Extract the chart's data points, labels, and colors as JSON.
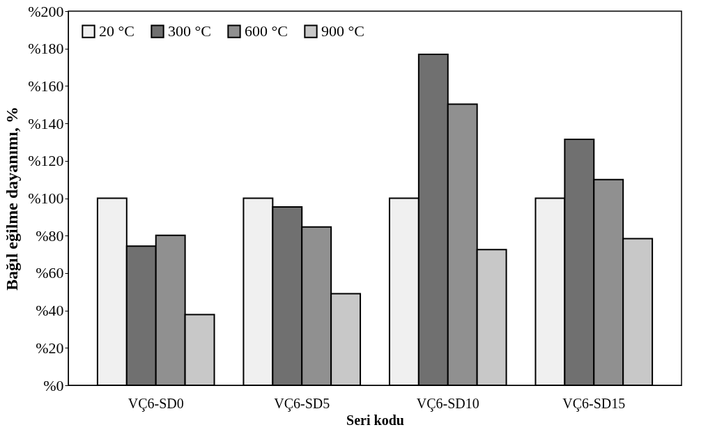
{
  "chart_data": {
    "type": "bar",
    "xlabel": "Seri kodu",
    "ylabel": "Bağıl eğilme dayanımı, %",
    "categories": [
      "VÇ6-SD0",
      "VÇ6-SD5",
      "VÇ6-SD10",
      "VÇ6-SD15"
    ],
    "series": [
      {
        "name": "20 °C",
        "color": "#f0f0f0",
        "values": [
          100,
          100,
          100,
          100
        ]
      },
      {
        "name": "300 °C",
        "color": "#707070",
        "values": [
          74.4,
          95.3,
          176.9,
          131.5
        ]
      },
      {
        "name": "600 °C",
        "color": "#909090",
        "values": [
          80.2,
          84.6,
          150.3,
          110
        ]
      },
      {
        "name": "900 °C",
        "color": "#c8c8c8",
        "values": [
          37.8,
          49,
          72.5,
          78.4
        ]
      }
    ],
    "ylim": [
      0,
      200
    ],
    "yticks": [
      {
        "value": 0,
        "label": "%0"
      },
      {
        "value": 20,
        "label": "%20"
      },
      {
        "value": 40,
        "label": "%40"
      },
      {
        "value": 60,
        "label": "%60"
      },
      {
        "value": 80,
        "label": "%80"
      },
      {
        "value": 100,
        "label": "%100"
      },
      {
        "value": 120,
        "label": "%120"
      },
      {
        "value": 140,
        "label": "%140"
      },
      {
        "value": 160,
        "label": "%160"
      },
      {
        "value": 180,
        "label": "%180"
      },
      {
        "value": 200,
        "label": "%200"
      }
    ],
    "grid": false,
    "legend": "top left"
  }
}
